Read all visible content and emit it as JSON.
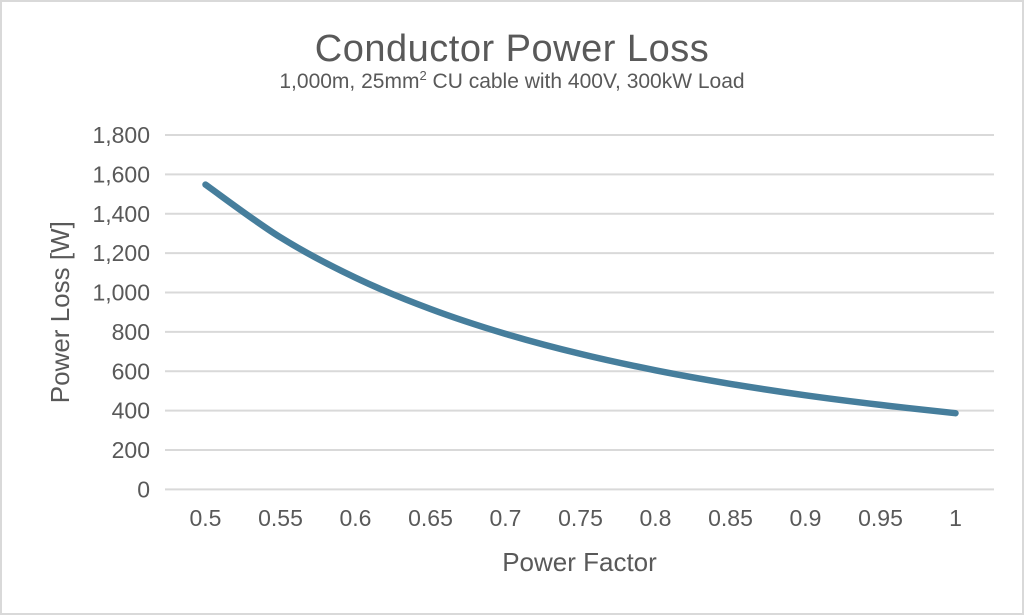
{
  "figure": {
    "title": "Conductor Power Loss",
    "subtitle_prefix": "1,000m, 25mm",
    "subtitle_sup": "2",
    "subtitle_suffix": " CU cable with 400V, 300kW Load"
  },
  "colors": {
    "line": "#467e9c",
    "gridline": "#d9d9d9",
    "text": "#595959",
    "border": "#d9d9d9",
    "background": "#ffffff"
  },
  "chart_data": {
    "type": "line",
    "title": "Conductor Power Loss",
    "subtitle": "1,000m, 25mm² CU cable with 400V, 300kW Load",
    "xlabel": "Power Factor",
    "ylabel": "Power Loss [W]",
    "x": [
      0.5,
      0.55,
      0.6,
      0.65,
      0.7,
      0.75,
      0.8,
      0.85,
      0.9,
      0.95,
      1.0
    ],
    "series": [
      {
        "name": "Conductor Power Loss",
        "values": [
          1548,
          1280,
          1075,
          916,
          790,
          688,
          605,
          536,
          478,
          429,
          387
        ]
      }
    ],
    "xlim": [
      0.5,
      1.0
    ],
    "ylim": [
      0,
      1800
    ],
    "y_ticks": [
      0,
      200,
      400,
      600,
      800,
      1000,
      1200,
      1400,
      1600,
      1800
    ],
    "y_tick_labels": [
      "0",
      "200",
      "400",
      "600",
      "800",
      "1,000",
      "1,200",
      "1,400",
      "1,600",
      "1,800"
    ],
    "x_ticks": [
      0.5,
      0.55,
      0.6,
      0.65,
      0.7,
      0.75,
      0.8,
      0.85,
      0.9,
      0.95,
      1.0
    ],
    "x_tick_labels": [
      "0.5",
      "0.55",
      "0.6",
      "0.65",
      "0.7",
      "0.75",
      "0.8",
      "0.85",
      "0.9",
      "0.95",
      "1"
    ],
    "grid": "horizontal-only",
    "legend": "none",
    "line_width": 6.5
  }
}
